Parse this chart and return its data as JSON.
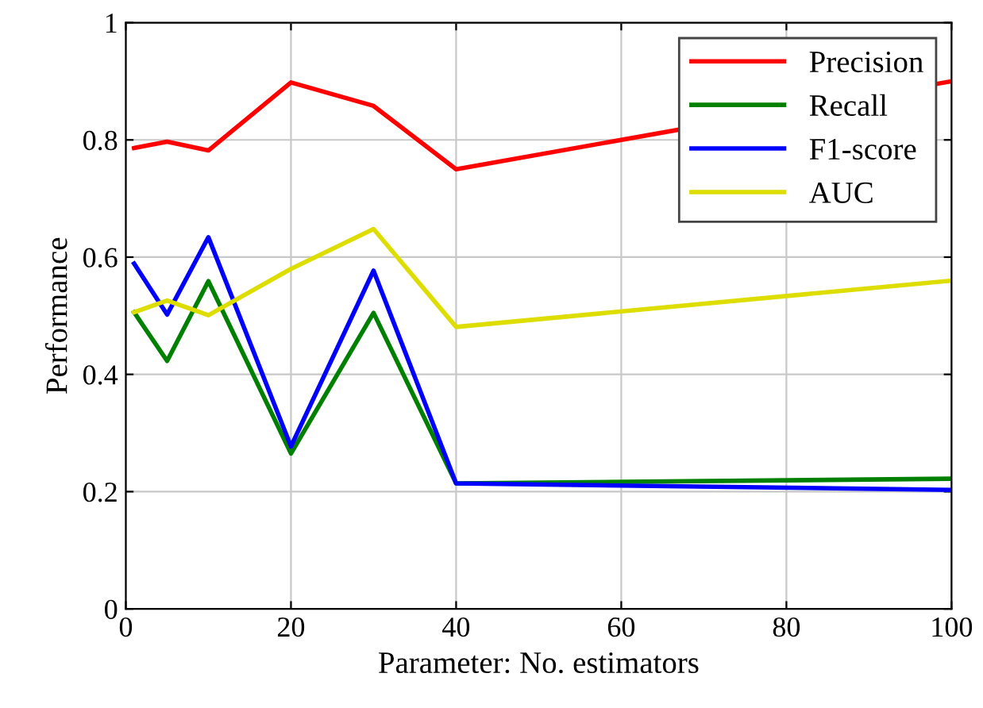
{
  "chart_data": {
    "type": "line",
    "xlabel": "Parameter: No. estimators",
    "ylabel": "Performance",
    "x": [
      1,
      5,
      10,
      20,
      30,
      40,
      100
    ],
    "series": [
      {
        "name": "Precision",
        "color": "#ff0000",
        "values": [
          0.786,
          0.797,
          0.782,
          0.898,
          0.858,
          0.75,
          0.9
        ]
      },
      {
        "name": "Recall",
        "color": "#008000",
        "values": [
          0.506,
          0.423,
          0.559,
          0.265,
          0.505,
          0.214,
          0.222
        ]
      },
      {
        "name": "F1-score",
        "color": "#0000ff",
        "values": [
          0.589,
          0.502,
          0.634,
          0.277,
          0.577,
          0.214,
          0.203
        ]
      },
      {
        "name": "AUC",
        "color": "#dddd00",
        "values": [
          0.506,
          0.526,
          0.501,
          0.58,
          0.648,
          0.481,
          0.56
        ]
      }
    ],
    "xlim": [
      0,
      100
    ],
    "ylim": [
      0,
      1
    ],
    "xticks": [
      0,
      20,
      40,
      60,
      80,
      100
    ],
    "yticks": [
      0,
      0.2,
      0.4,
      0.6,
      0.8,
      1
    ],
    "grid": true,
    "legend": "top right",
    "marker": "none",
    "line_style": "solid"
  }
}
